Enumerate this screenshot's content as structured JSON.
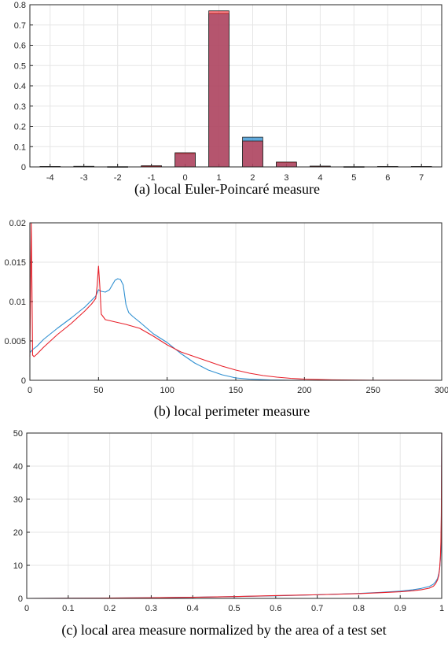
{
  "chart_data": [
    {
      "type": "bar",
      "caption": "(a) local Euler-Poincaré measure",
      "categories": [
        "-4",
        "-3",
        "-2",
        "-1",
        "0",
        "1",
        "2",
        "3",
        "4",
        "5",
        "6",
        "7"
      ],
      "series": [
        {
          "color": "#2e8fd1",
          "values": [
            0.002,
            0.002,
            0.001,
            0.003,
            0.066,
            0.755,
            0.147,
            0.022,
            0.003,
            0.001,
            0.002,
            0.002
          ]
        },
        {
          "color": "#e8202a",
          "values": [
            0.002,
            0.003,
            0.001,
            0.006,
            0.07,
            0.77,
            0.128,
            0.024,
            0.004,
            0.001,
            0.002,
            0.002
          ]
        }
      ],
      "xlim": [
        -4.6,
        7.6
      ],
      "ylim": [
        0,
        0.8
      ],
      "yticks": [
        0,
        0.1,
        0.2,
        0.3,
        0.4,
        0.5,
        0.6,
        0.7,
        0.8
      ],
      "grid": true
    },
    {
      "type": "line",
      "caption": "(b) local perimeter measure",
      "xlim": [
        0,
        300
      ],
      "ylim": [
        0,
        0.02
      ],
      "xticks": [
        0,
        50,
        100,
        150,
        200,
        250,
        300
      ],
      "yticks": [
        "0",
        "0.005",
        "0.01",
        "0.015",
        "0.02"
      ],
      "ytick_values": [
        0,
        0.005,
        0.01,
        0.015,
        0.02
      ],
      "grid": true,
      "series": [
        {
          "color": "#2e8fd1",
          "x": [
            0,
            1,
            2,
            5,
            10,
            20,
            30,
            40,
            48,
            50,
            52,
            55,
            58,
            60,
            62,
            64,
            66,
            68,
            70,
            72,
            75,
            80,
            90,
            100,
            110,
            120,
            130,
            140,
            150,
            160,
            175,
            190,
            200,
            250,
            300
          ],
          "y": [
            0.0035,
            0.0037,
            0.0039,
            0.0043,
            0.0052,
            0.0066,
            0.0079,
            0.0093,
            0.0107,
            0.0115,
            0.0113,
            0.0112,
            0.0115,
            0.0121,
            0.0127,
            0.0129,
            0.0128,
            0.0121,
            0.0096,
            0.0086,
            0.0081,
            0.0074,
            0.0059,
            0.0048,
            0.0034,
            0.0022,
            0.0013,
            0.0007,
            0.0003,
            0.00015,
            5e-05,
            1e-05,
            0,
            0,
            0
          ]
        },
        {
          "color": "#e8202a",
          "x": [
            0,
            1,
            1.5,
            2,
            3,
            5,
            10,
            20,
            30,
            40,
            45,
            48,
            49,
            50,
            51,
            52,
            55,
            60,
            70,
            80,
            90,
            100,
            110,
            120,
            130,
            140,
            150,
            160,
            170,
            180,
            190,
            200,
            220,
            250,
            300
          ],
          "y": [
            0.003,
            0.02,
            0.012,
            0.0032,
            0.003,
            0.0033,
            0.0042,
            0.0058,
            0.0072,
            0.0088,
            0.0097,
            0.0104,
            0.012,
            0.0145,
            0.0118,
            0.0084,
            0.0077,
            0.0075,
            0.0071,
            0.0066,
            0.0056,
            0.0045,
            0.0036,
            0.003,
            0.0024,
            0.0018,
            0.0013,
            0.0009,
            0.0006,
            0.0004,
            0.00025,
            0.00015,
            6e-05,
            1e-05,
            0
          ]
        }
      ]
    },
    {
      "type": "line",
      "caption": "(c) local area measure normalized by the area of a test set",
      "xlim": [
        0,
        1
      ],
      "ylim": [
        0,
        50
      ],
      "xticks": [
        "0",
        "0.1",
        "0.2",
        "0.3",
        "0.4",
        "0.5",
        "0.6",
        "0.7",
        "0.8",
        "0.9",
        "1"
      ],
      "xtick_values": [
        0,
        0.1,
        0.2,
        0.3,
        0.4,
        0.5,
        0.6,
        0.7,
        0.8,
        0.9,
        1
      ],
      "yticks": [
        0,
        10,
        20,
        30,
        40,
        50
      ],
      "grid": true,
      "series": [
        {
          "color": "#2e8fd1",
          "x": [
            0,
            0.1,
            0.2,
            0.3,
            0.4,
            0.5,
            0.6,
            0.7,
            0.8,
            0.85,
            0.9,
            0.93,
            0.95,
            0.97,
            0.98,
            0.985,
            0.99,
            0.993,
            0.995,
            0.997,
            0.998,
            0.999,
            1
          ],
          "y": [
            0,
            0.05,
            0.1,
            0.2,
            0.35,
            0.55,
            0.8,
            1.1,
            1.5,
            1.8,
            2.2,
            2.6,
            3.0,
            3.6,
            4.3,
            5.0,
            6.0,
            7.5,
            9.0,
            12,
            15,
            22,
            50
          ]
        },
        {
          "color": "#e8202a",
          "x": [
            0,
            0.1,
            0.2,
            0.3,
            0.4,
            0.5,
            0.6,
            0.7,
            0.8,
            0.85,
            0.9,
            0.93,
            0.95,
            0.97,
            0.98,
            0.985,
            0.99,
            0.993,
            0.995,
            0.997,
            0.998,
            0.999,
            1
          ],
          "y": [
            0,
            0.05,
            0.1,
            0.2,
            0.35,
            0.55,
            0.85,
            1.1,
            1.45,
            1.7,
            2.0,
            2.3,
            2.6,
            3.1,
            3.7,
            4.4,
            5.6,
            7.0,
            9.0,
            13,
            17,
            25,
            50
          ]
        }
      ]
    }
  ]
}
